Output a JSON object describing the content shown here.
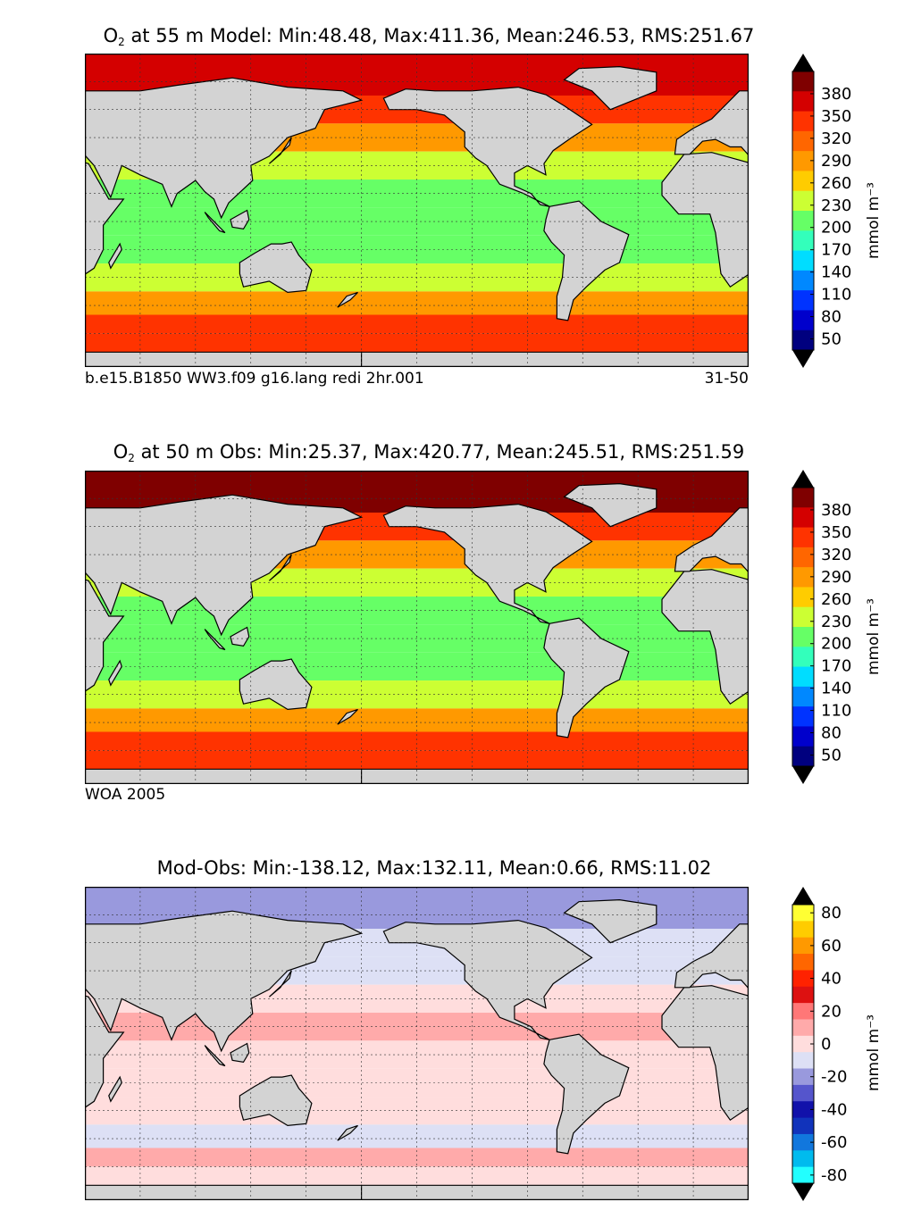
{
  "panels": [
    {
      "id": "model",
      "title_prefix": "O",
      "title_sub": "2",
      "title_rest": " at 55 m Model: Min:48.48, Max:411.36, Mean:246.53, RMS:251.67",
      "footer_left": "b.e15.B1850 WW3.f09 g16.lang redi 2hr.001",
      "footer_right": "31-50",
      "colorbar_unit": "mmol m⁻³",
      "colorbar_ticks": [
        "380",
        "350",
        "320",
        "290",
        "260",
        "230",
        "200",
        "170",
        "140",
        "110",
        "80",
        "50"
      ],
      "colorbar_colors": [
        "#7f0000",
        "#d40000",
        "#ff3300",
        "#ff6600",
        "#ff9900",
        "#ffcc00",
        "#ccff33",
        "#66ff66",
        "#33ffbb",
        "#00ddff",
        "#0088ff",
        "#0033ff",
        "#0000cc",
        "#00007f"
      ]
    },
    {
      "id": "obs",
      "title_prefix": "O",
      "title_sub": "2",
      "title_rest": " at 50 m Obs: Min:25.37, Max:420.77, Mean:245.51, RMS:251.59",
      "footer_left": "WOA 2005",
      "footer_right": "",
      "colorbar_unit": "mmol m⁻³",
      "colorbar_ticks": [
        "380",
        "350",
        "320",
        "290",
        "260",
        "230",
        "200",
        "170",
        "140",
        "110",
        "80",
        "50"
      ],
      "colorbar_colors": [
        "#7f0000",
        "#d40000",
        "#ff3300",
        "#ff6600",
        "#ff9900",
        "#ffcc00",
        "#ccff33",
        "#66ff66",
        "#33ffbb",
        "#00ddff",
        "#0088ff",
        "#0033ff",
        "#0000cc",
        "#00007f"
      ]
    },
    {
      "id": "diff",
      "title_prefix": "",
      "title_sub": "",
      "title_rest": "Mod-Obs: Min:-138.12, Max:132.11, Mean:0.66, RMS:11.02",
      "footer_left": "",
      "footer_right": "",
      "colorbar_unit": "mmol m⁻³",
      "colorbar_ticks": [
        "80",
        "60",
        "40",
        "20",
        "0",
        "-20",
        "-40",
        "-60",
        "-80"
      ],
      "colorbar_colors": [
        "#ffff33",
        "#ffcc00",
        "#ff9900",
        "#ff6600",
        "#ff2200",
        "#dd1111",
        "#ff7777",
        "#ffaaaa",
        "#ffdddd",
        "#dde0f5",
        "#9999dd",
        "#5555cc",
        "#1111aa",
        "#1133bb",
        "#1177dd",
        "#00bbee",
        "#22ffff"
      ]
    }
  ],
  "chart_data": [
    {
      "type": "heatmap",
      "title": "O2 at 55 m Model: Min:48.48, Max:411.36, Mean:246.53, RMS:251.67",
      "variable": "O2",
      "depth_m": 55,
      "source": "Model",
      "stats": {
        "min": 48.48,
        "max": 411.36,
        "mean": 246.53,
        "rms": 251.67
      },
      "colorbar_label": "mmol m⁻³",
      "colorbar_ticks": [
        50,
        80,
        110,
        140,
        170,
        200,
        230,
        260,
        290,
        320,
        350,
        380
      ],
      "colorbar_range": [
        35,
        410
      ],
      "zones": [
        {
          "lat": 75,
          "value": 380
        },
        {
          "lat": 60,
          "value": 330
        },
        {
          "lat": 45,
          "value": 290
        },
        {
          "lat": 30,
          "value": 230
        },
        {
          "lat": 15,
          "value": 215
        },
        {
          "lat": 0,
          "value": 210
        },
        {
          "lat": -15,
          "value": 215
        },
        {
          "lat": -30,
          "value": 235
        },
        {
          "lat": -45,
          "value": 290
        },
        {
          "lat": -55,
          "value": 330
        },
        {
          "lat": -65,
          "value": 335
        }
      ]
    },
    {
      "type": "heatmap",
      "title": "O2 at 50 m Obs: Min:25.37, Max:420.77, Mean:245.51, RMS:251.59",
      "variable": "O2",
      "depth_m": 50,
      "source": "WOA 2005",
      "stats": {
        "min": 25.37,
        "max": 420.77,
        "mean": 245.51,
        "rms": 251.59
      },
      "colorbar_label": "mmol m⁻³",
      "colorbar_ticks": [
        50,
        80,
        110,
        140,
        170,
        200,
        230,
        260,
        290,
        320,
        350,
        380
      ],
      "colorbar_range": [
        35,
        410
      ],
      "zones": [
        {
          "lat": 75,
          "value": 390
        },
        {
          "lat": 60,
          "value": 330
        },
        {
          "lat": 45,
          "value": 290
        },
        {
          "lat": 30,
          "value": 225
        },
        {
          "lat": 15,
          "value": 205
        },
        {
          "lat": 0,
          "value": 200
        },
        {
          "lat": -15,
          "value": 205
        },
        {
          "lat": -30,
          "value": 230
        },
        {
          "lat": -45,
          "value": 285
        },
        {
          "lat": -55,
          "value": 330
        },
        {
          "lat": -65,
          "value": 340
        }
      ]
    },
    {
      "type": "heatmap",
      "title": "Mod-Obs: Min:-138.12, Max:132.11, Mean:0.66, RMS:11.02",
      "stats": {
        "min": -138.12,
        "max": 132.11,
        "mean": 0.66,
        "rms": 11.02
      },
      "colorbar_label": "mmol m⁻³",
      "colorbar_ticks": [
        -80,
        -60,
        -40,
        -20,
        0,
        20,
        40,
        60,
        80
      ],
      "colorbar_range": [
        -85,
        85
      ],
      "zones": [
        {
          "lat": 75,
          "value": -15
        },
        {
          "lat": 60,
          "value": -5
        },
        {
          "lat": 45,
          "value": -8
        },
        {
          "lat": 30,
          "value": 5
        },
        {
          "lat": 15,
          "value": 8
        },
        {
          "lat": 0,
          "value": 3
        },
        {
          "lat": -15,
          "value": -3
        },
        {
          "lat": -30,
          "value": 4
        },
        {
          "lat": -45,
          "value": -6
        },
        {
          "lat": -55,
          "value": 6
        },
        {
          "lat": -65,
          "value": -2
        }
      ]
    }
  ]
}
